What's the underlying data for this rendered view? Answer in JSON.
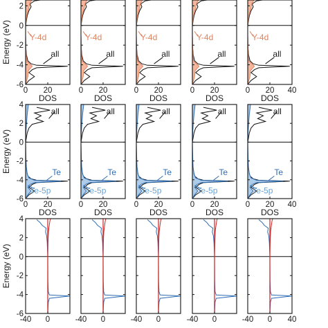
{
  "chart_data": {
    "type": "line",
    "layout": "3 rows x 5 columns of density-of-states panels",
    "colors": {
      "total": "#111111",
      "y4d": "#e0825e",
      "y4d_fill": "#f2a98b",
      "te5p": "#2f6db3",
      "te5p_fill": "#9fc3e6",
      "spin_up": "#2f6db3",
      "spin_down": "#cc2222"
    },
    "rows": [
      {
        "ylabel": "Energy (eV)",
        "xlabel": "DOS",
        "ylim": [
          -6,
          4
        ],
        "yticks": [
          "-6",
          "-4",
          "-2",
          "0",
          "2"
        ],
        "xlim": [
          0,
          40
        ],
        "xticks": [
          "0",
          "20",
          "40"
        ],
        "annotations": [
          "Y-4d",
          "all"
        ],
        "series": [
          {
            "name": "all",
            "kind": "total",
            "energy": [
              -6,
              -5.6,
              -5.2,
              -4.8,
              -4.5,
              -4.3,
              -4.15,
              -4.05,
              -3.9,
              -3.6,
              -3,
              -2.2,
              -1,
              0,
              1,
              1.5,
              1.9,
              2.2,
              2.5,
              2.8,
              3.1,
              3.3
            ],
            "dos": [
              0,
              3,
              8,
              3,
              6,
              10,
              38,
              10,
              5,
              2,
              0.8,
              0.2,
              0,
              0,
              1.5,
              3,
              5,
              4,
              8,
              26,
              8,
              14
            ]
          },
          {
            "name": "Y-4d",
            "kind": "y4d",
            "energy": [
              -6,
              -5.2,
              -4.6,
              -4.15,
              -3.6,
              -2.5,
              -1,
              0,
              1,
              1.8,
              2.3,
              2.8,
              3.3
            ],
            "dos": [
              0,
              2,
              2.5,
              6,
              1,
              0.3,
              0,
              0,
              1,
              3,
              4,
              7,
              9
            ]
          }
        ]
      },
      {
        "ylabel": "Energy (eV)",
        "xlabel": "DOS",
        "ylim": [
          -6,
          4
        ],
        "yticks": [
          "-6",
          "-4",
          "-2",
          "0",
          "2",
          "4"
        ],
        "xlim": [
          0,
          40
        ],
        "xticks": [
          "0",
          "20",
          "40"
        ],
        "annotations": [
          "all",
          "Te",
          "Te-5p"
        ],
        "series": [
          {
            "name": "all",
            "kind": "total",
            "energy": [
              -6,
              -5.6,
              -5.2,
              -4.8,
              -4.5,
              -4.3,
              -4.15,
              -4.05,
              -3.9,
              -3.6,
              -3,
              -2.2,
              -1,
              0,
              1,
              1.5,
              1.9,
              2.2,
              2.5,
              2.8,
              3.1,
              3.4,
              3.7
            ],
            "dos": [
              0,
              3,
              8,
              3,
              6,
              10,
              38,
              10,
              5,
              2,
              0.8,
              0.2,
              0,
              0,
              1.5,
              3,
              6,
              16,
              9,
              14,
              8,
              22,
              10
            ]
          },
          {
            "name": "Te-5p",
            "kind": "te5p",
            "energy": [
              -6,
              -5.6,
              -5.2,
              -4.8,
              -4.5,
              -4.3,
              -4.15,
              -4.05,
              -3.8,
              -3.4,
              -2.6,
              -1.6,
              -0.5,
              0,
              1,
              2,
              3,
              4
            ],
            "dos": [
              0,
              2,
              5,
              2,
              4,
              8,
              32,
              8,
              3,
              1.5,
              0.6,
              0.3,
              0.1,
              0,
              0.3,
              0.8,
              1.5,
              2.5
            ]
          }
        ]
      },
      {
        "ylabel": "Energy (eV)",
        "xlabel": "",
        "ylim": [
          -6,
          4
        ],
        "yticks": [
          "-6",
          "-4",
          "-2",
          "0",
          "2",
          "4"
        ],
        "xlim": [
          -40,
          40
        ],
        "xticks": [
          "-40",
          "0",
          "40"
        ],
        "annotations": [],
        "series": [
          {
            "name": "",
            "kind": "spin_up",
            "energy": [
              -6,
              -4.8,
              -4.4,
              -4.15,
              -4.05,
              -3.7,
              -2.5,
              0,
              1.5,
              2.2,
              2.6,
              3,
              3.3,
              3.6,
              3.9
            ],
            "dos": [
              0,
              1,
              3,
              40,
              3,
              1,
              0.3,
              0,
              -1,
              -2,
              -4,
              -3,
              -10,
              -14,
              -20
            ]
          },
          {
            "name": "",
            "kind": "spin_down",
            "energy": [
              -6,
              -4,
              0,
              1,
              2,
              2.6,
              3,
              3.4,
              3.8,
              4
            ],
            "dos": [
              0,
              0,
              0,
              0.3,
              0.8,
              1.2,
              2,
              3,
              4,
              5
            ]
          }
        ]
      }
    ]
  }
}
